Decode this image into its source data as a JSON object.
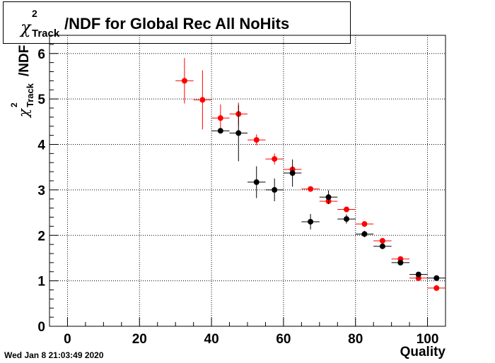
{
  "header": {
    "title_prefix": "χ",
    "title_sup": "2",
    "title_sub": "Track",
    "title_suffix": "/NDF for Global Rec All NoHits"
  },
  "timestamp": "Wed Jan  8 21:03:49 2020",
  "chart_data": {
    "type": "scatter",
    "title": "χ²_Track/NDF for Global Rec All NoHits",
    "xlabel": "Quality",
    "ylabel": "χ²_Track/NDF",
    "xlim": [
      -5,
      105
    ],
    "ylim": [
      0,
      6.4
    ],
    "x_ticks": [
      0,
      20,
      40,
      60,
      80,
      100
    ],
    "y_ticks": [
      0,
      1,
      2,
      3,
      4,
      5,
      6
    ],
    "grid": true,
    "x_bin_half_width": 2.5,
    "series": [
      {
        "color": "#ff0000",
        "points": [
          {
            "x": 32.5,
            "y": 5.4,
            "err": 0.5
          },
          {
            "x": 37.5,
            "y": 4.98,
            "err": 0.65
          },
          {
            "x": 42.5,
            "y": 4.58,
            "err": 0.3
          },
          {
            "x": 47.5,
            "y": 4.67,
            "err": 0.25
          },
          {
            "x": 52.5,
            "y": 4.1,
            "err": 0.12
          },
          {
            "x": 57.5,
            "y": 3.68,
            "err": 0.12
          },
          {
            "x": 62.5,
            "y": 3.45,
            "err": 0.08
          },
          {
            "x": 67.5,
            "y": 3.02,
            "err": 0.05
          },
          {
            "x": 72.5,
            "y": 2.75,
            "err": 0.05
          },
          {
            "x": 77.5,
            "y": 2.57,
            "err": 0.04
          },
          {
            "x": 82.5,
            "y": 2.25,
            "err": 0.03
          },
          {
            "x": 87.5,
            "y": 1.88,
            "err": 0.03
          },
          {
            "x": 92.5,
            "y": 1.48,
            "err": 0.02
          },
          {
            "x": 97.5,
            "y": 1.06,
            "err": 0.02
          },
          {
            "x": 102.5,
            "y": 0.84,
            "err": 0.02
          }
        ]
      },
      {
        "color": "#000000",
        "points": [
          {
            "x": 42.5,
            "y": 4.3,
            "err": 0.05
          },
          {
            "x": 47.5,
            "y": 4.25,
            "err": 0.62
          },
          {
            "x": 52.5,
            "y": 3.17,
            "err": 0.35
          },
          {
            "x": 57.5,
            "y": 3.0,
            "err": 0.25
          },
          {
            "x": 62.5,
            "y": 3.37,
            "err": 0.3
          },
          {
            "x": 67.5,
            "y": 2.3,
            "err": 0.17
          },
          {
            "x": 72.5,
            "y": 2.84,
            "err": 0.15
          },
          {
            "x": 77.5,
            "y": 2.36,
            "err": 0.1
          },
          {
            "x": 82.5,
            "y": 2.03,
            "err": 0.07
          },
          {
            "x": 87.5,
            "y": 1.76,
            "err": 0.05
          },
          {
            "x": 92.5,
            "y": 1.4,
            "err": 0.04
          },
          {
            "x": 97.5,
            "y": 1.14,
            "err": 0.04
          },
          {
            "x": 102.5,
            "y": 1.06,
            "err": 0.03
          }
        ]
      }
    ]
  }
}
